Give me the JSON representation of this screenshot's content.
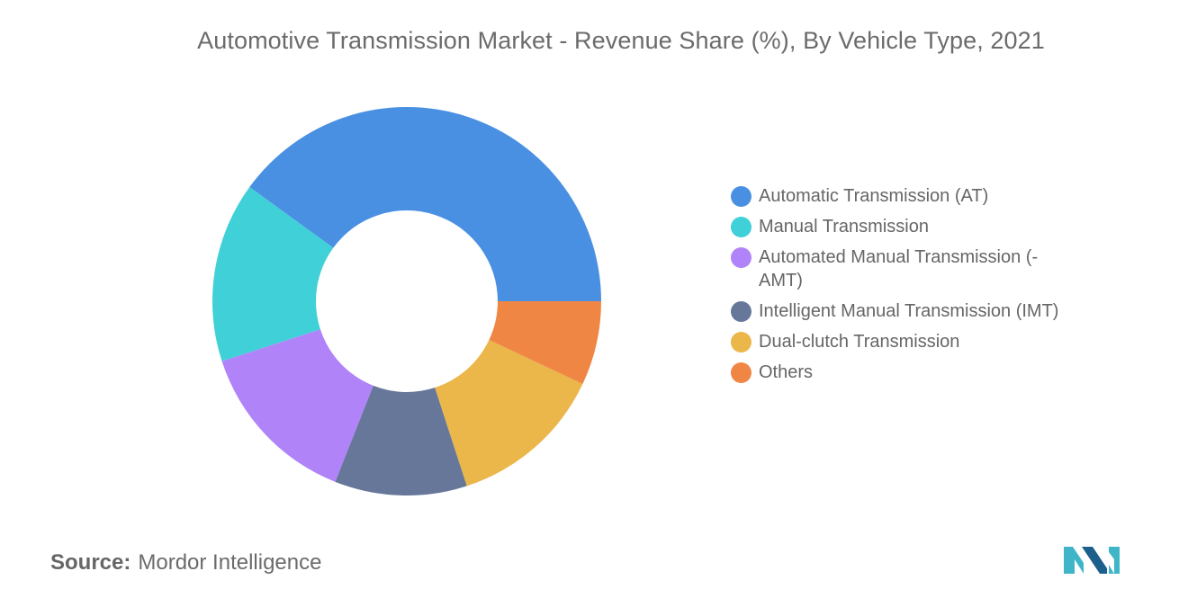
{
  "chart_data": {
    "type": "pie",
    "title": "Automotive Transmission Market - Revenue Share (%), By Vehicle Type, 2021",
    "donut": true,
    "categories": [
      "Automatic Transmission (AT)",
      "Manual Transmission",
      "Automated Manual Transmission (-AMT)",
      "Intelligent Manual Transmission (IMT)",
      "Dual-clutch Transmission",
      "Others"
    ],
    "values": [
      40,
      15,
      14,
      11,
      13,
      7
    ],
    "colors": [
      "#4a90e2",
      "#40d0d8",
      "#b083f9",
      "#66779a",
      "#ebb64a",
      "#f08644"
    ],
    "legend_position": "right"
  },
  "legend": {
    "items": [
      "Automatic Transmission (AT)",
      "Manual Transmission",
      "Automated Manual Transmission (-AMT)",
      "Intelligent Manual Transmission (IMT)",
      "Dual-clutch Transmission",
      "Others"
    ]
  },
  "source": {
    "label": "Source:",
    "text": "Mordor Intelligence"
  },
  "logo": {
    "icon": "mordor-intelligence-logo-icon",
    "colors": [
      "#3fb6c8",
      "#1c5f8c"
    ]
  }
}
